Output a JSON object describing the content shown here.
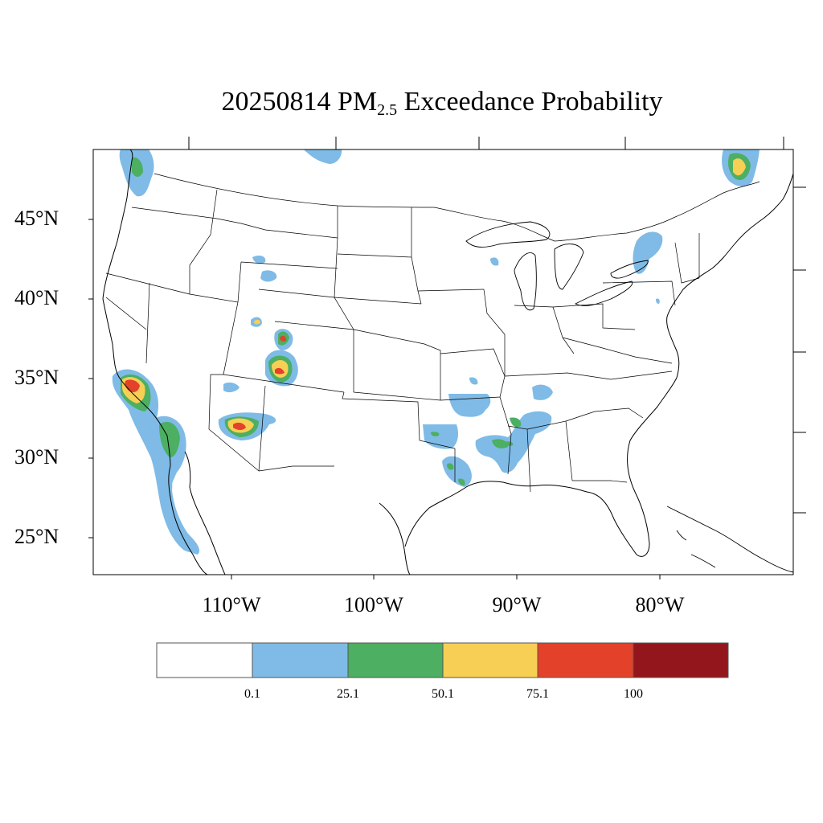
{
  "title": {
    "date": "20250814",
    "pm_main": "PM",
    "pm_sub": "2.5",
    "rest": "Exceedance Probability"
  },
  "lat_labels": [
    "45°N",
    "40°N",
    "35°N",
    "30°N",
    "25°N"
  ],
  "lon_labels": [
    "110°W",
    "100°W",
    "90°W",
    "80°W"
  ],
  "colorbar": {
    "colors": [
      "#ffffff",
      "#7fbbe6",
      "#4caf62",
      "#f8cf55",
      "#e34129",
      "#92161c"
    ],
    "labels": [
      "0.1",
      "25.1",
      "50.1",
      "75.1",
      "100"
    ]
  },
  "regions": [
    {
      "name": "northern-california",
      "level": 4
    },
    {
      "name": "southern-california",
      "level": 2
    },
    {
      "name": "baja-california",
      "level": 1
    },
    {
      "name": "arizona",
      "level": 4
    },
    {
      "name": "colorado",
      "level": 4
    },
    {
      "name": "washington",
      "level": 2
    },
    {
      "name": "quebec",
      "level": 3
    },
    {
      "name": "arkansas",
      "level": 1
    },
    {
      "name": "louisiana",
      "level": 2
    },
    {
      "name": "mississippi",
      "level": 2
    },
    {
      "name": "new-york",
      "level": 1
    }
  ]
}
